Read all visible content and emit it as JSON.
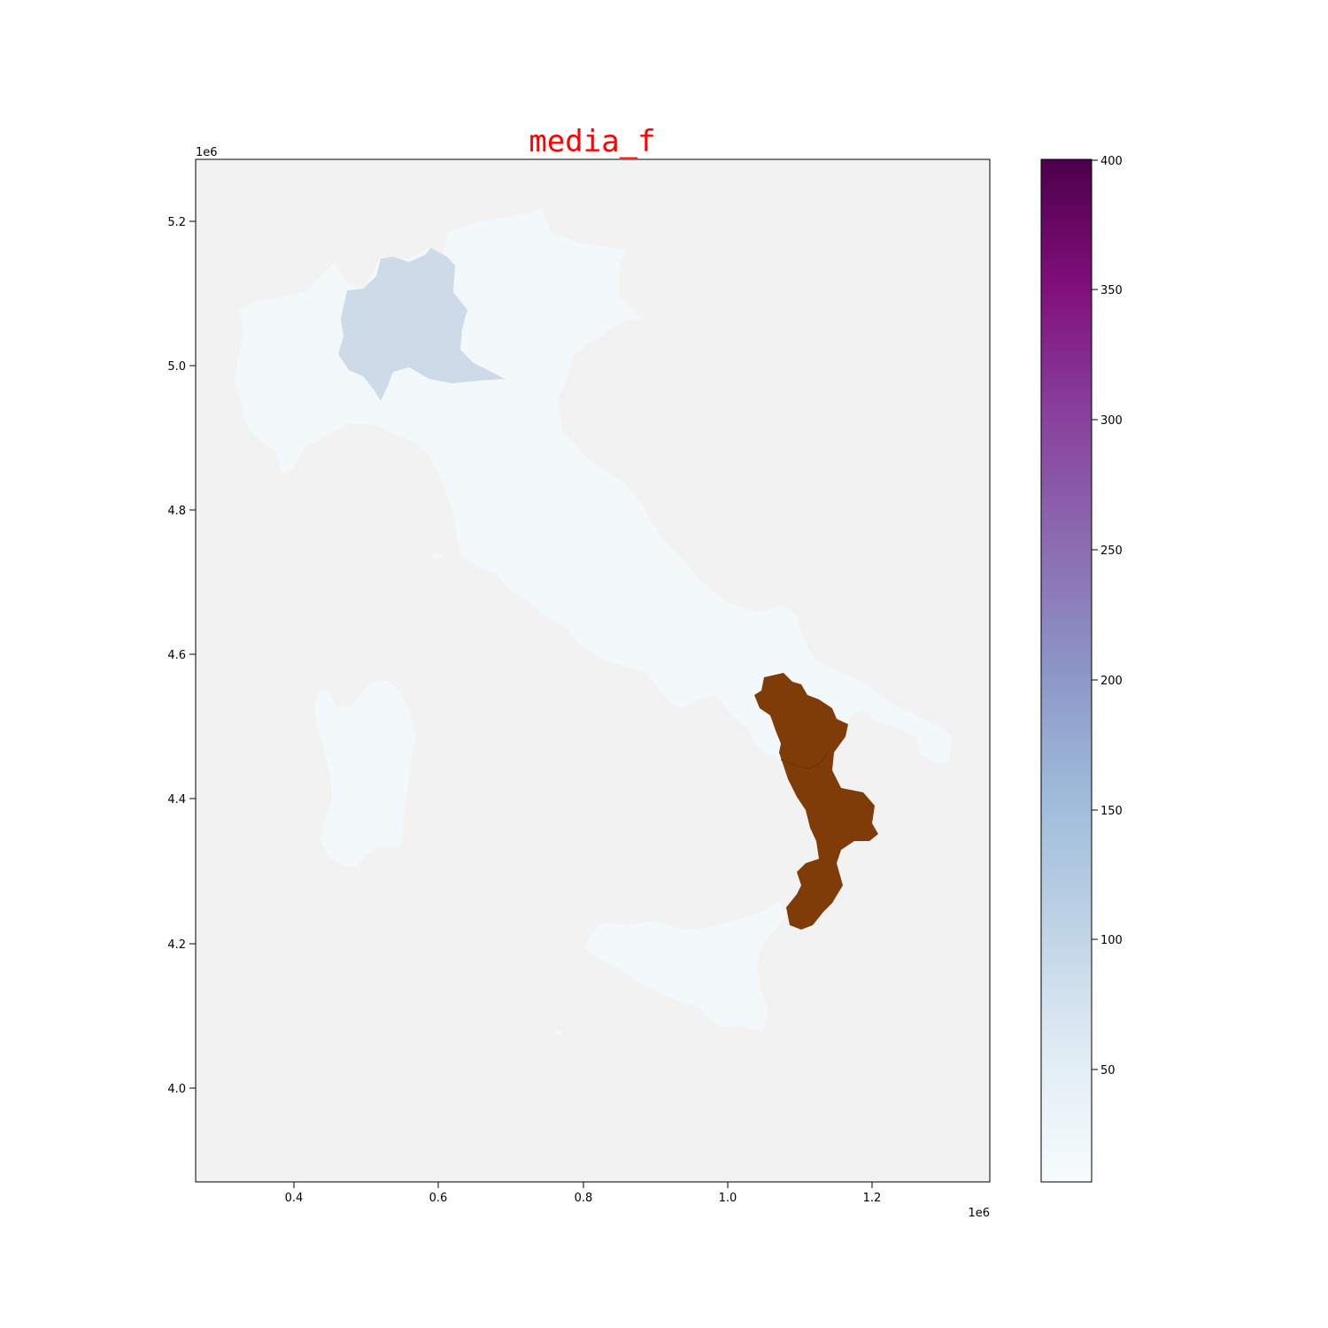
{
  "title": "media_f",
  "title_color": "#ff0000",
  "axes": {
    "x_ticks": [
      "0.4",
      "0.6",
      "0.8",
      "1.0",
      "1.2"
    ],
    "y_ticks": [
      "5.2",
      "5.0",
      "4.8",
      "4.6",
      "4.4",
      "4.2",
      "4.0"
    ],
    "x_offset": "1e6",
    "y_offset": "1e6",
    "xlim": [
      0.265,
      1.355
    ],
    "ylim": [
      3.87,
      5.28
    ],
    "background": "#f2f2f2"
  },
  "colorbar": {
    "ticks": [
      "400",
      "350",
      "300",
      "250",
      "200",
      "150",
      "100",
      "50"
    ],
    "range": [
      5,
      400
    ],
    "colormap": "BuPu"
  },
  "chart_data": {
    "type": "choropleth",
    "title": "media_f",
    "variable": "media_f",
    "highlight_color": "#7f3b08",
    "regions": [
      {
        "name": "Lombardia",
        "fill": "#cddbe8",
        "level": "approx. 90"
      },
      {
        "name": "Calabria / Basilicata (highlighted)",
        "fill": "#7f3b08",
        "level": "highlighted"
      },
      {
        "name": "Other regions",
        "fill": "#f3f8fb",
        "level": "approx. 10-25"
      }
    ]
  }
}
